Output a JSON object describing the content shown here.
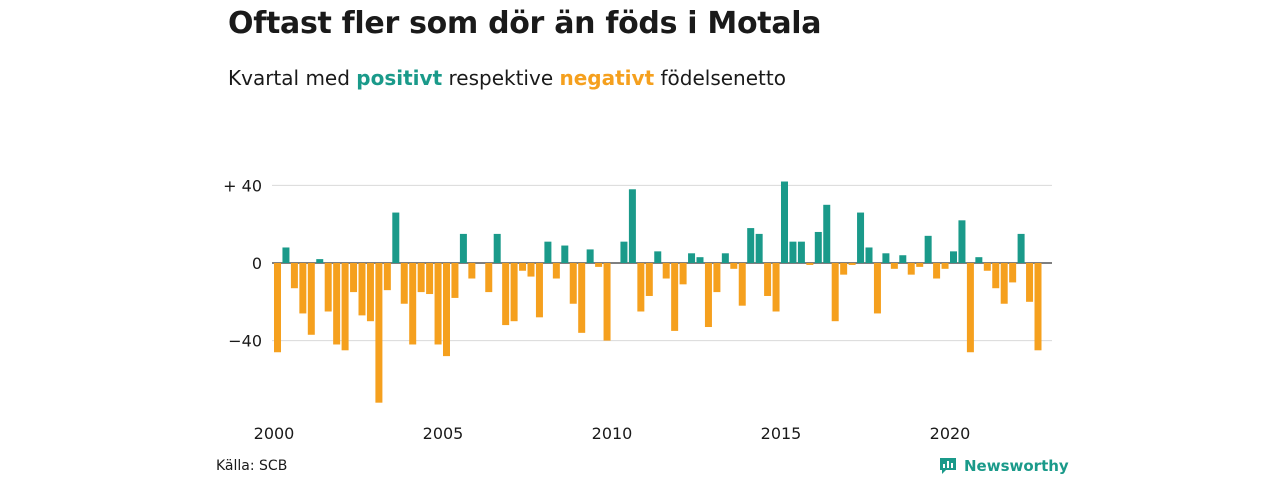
{
  "title": "Oftast fler som dör än föds i Motala",
  "subtitle": {
    "prefix": "Kvartal med",
    "positive": "positivt",
    "middle": "respektive",
    "negative": "negativt",
    "suffix": "födelsenetto"
  },
  "source": "Källa: SCB",
  "brand": {
    "name": "Newsworthy",
    "icon": "newsworthy-logo-icon"
  },
  "colors": {
    "positive": "#1a9a8a",
    "negative": "#f5a01e",
    "grid": "#d9d9d9",
    "text": "#1a1a1a"
  },
  "chart_data": {
    "type": "bar",
    "x_start": "2000 Q1",
    "ylim": [
      -75,
      42
    ],
    "y_ticks": [
      {
        "value": 40,
        "label": "+ 40"
      },
      {
        "value": 0,
        "label": "0"
      },
      {
        "value": -40,
        "label": "−40"
      }
    ],
    "x_ticks": [
      "2000",
      "2005",
      "2010",
      "2015",
      "2020"
    ],
    "grid": true,
    "values": [
      -46,
      8,
      -13,
      -26,
      -37,
      2,
      -25,
      -42,
      -45,
      -15,
      -27,
      -30,
      -72,
      -14,
      26,
      -21,
      -42,
      -15,
      -16,
      -42,
      -48,
      -18,
      15,
      -8,
      0,
      -15,
      15,
      -32,
      -30,
      -4,
      -7,
      -28,
      11,
      -8,
      9,
      -21,
      -36,
      7,
      -2,
      -40,
      0,
      11,
      38,
      -25,
      -17,
      6,
      -8,
      -35,
      -11,
      5,
      3,
      -33,
      -15,
      5,
      -3,
      -22,
      18,
      15,
      -17,
      -25,
      42,
      11,
      11,
      -1,
      16,
      30,
      -30,
      -6,
      -1,
      26,
      8,
      -26,
      5,
      -3,
      4,
      -6,
      -2,
      14,
      -8,
      -3,
      6,
      22,
      -46,
      3,
      -4,
      -13,
      -21,
      -10,
      15,
      -20,
      -45
    ]
  }
}
